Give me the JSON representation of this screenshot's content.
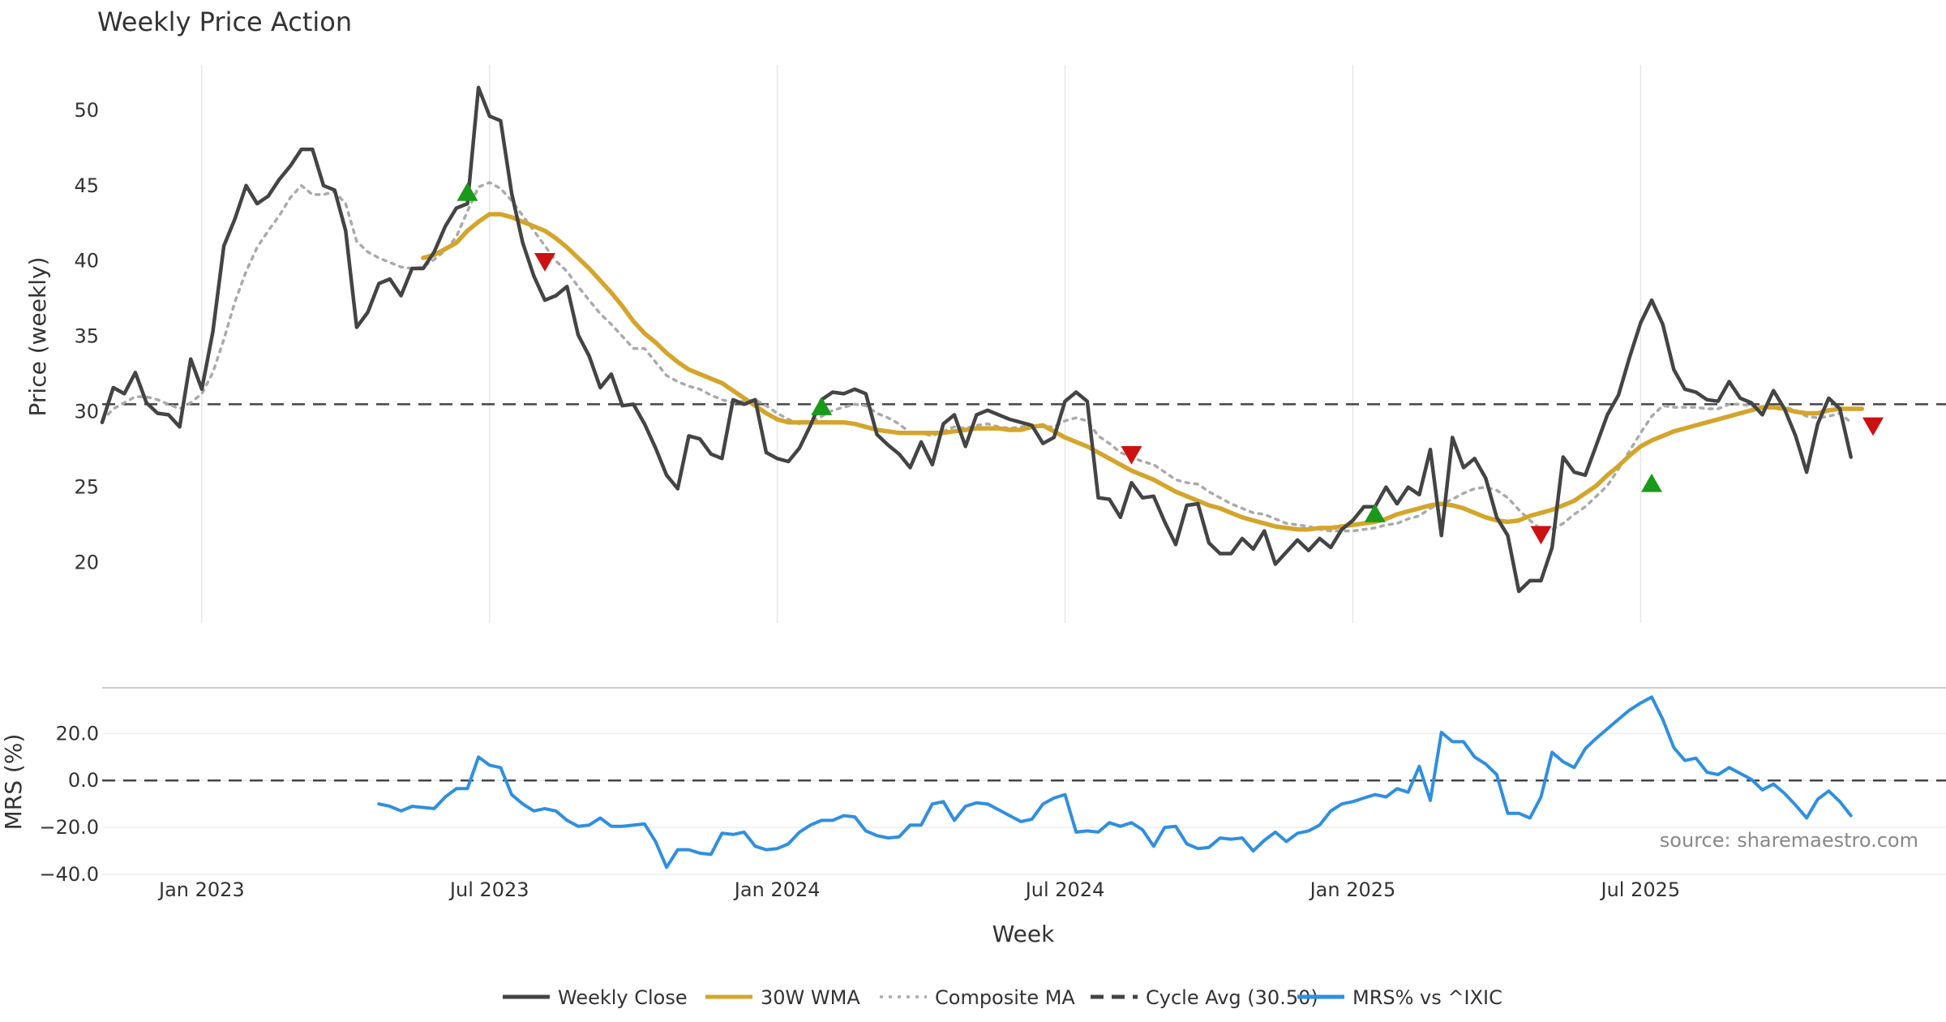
{
  "chart_data": {
    "type": "line",
    "title": "Weekly Price Action",
    "xlabel": "Week",
    "x_ticks": [
      "Jan 2023",
      "Jul 2023",
      "Jan 2024",
      "Jul 2024",
      "Jan 2025",
      "Jul 2025"
    ],
    "price_panel": {
      "ylabel": "Price (weekly)",
      "ylim": [
        16,
        53
      ],
      "yticks": [
        20,
        25,
        30,
        35,
        40,
        45,
        50
      ],
      "cycle_avg": 30.5,
      "series": [
        {
          "name": "Weekly Close",
          "color": "#444444",
          "style": "solid",
          "start_week": 0,
          "values": [
            29.3,
            31.6,
            31.2,
            32.6,
            30.6,
            29.9,
            29.8,
            29.0,
            33.5,
            31.5,
            35.3,
            41.0,
            42.8,
            45.0,
            43.8,
            44.3,
            45.4,
            46.3,
            47.4,
            47.4,
            45.0,
            44.7,
            42.0,
            35.6,
            36.6,
            38.5,
            38.8,
            37.7,
            39.5,
            39.5,
            40.6,
            42.3,
            43.5,
            43.8,
            51.5,
            49.6,
            49.3,
            44.5,
            41.2,
            39.0,
            37.4,
            37.7,
            38.3,
            35.1,
            33.7,
            31.6,
            32.5,
            30.4,
            30.5,
            29.2,
            27.6,
            25.8,
            24.9,
            28.4,
            28.2,
            27.2,
            26.9,
            30.8,
            30.5,
            30.8,
            27.3,
            26.9,
            26.7,
            27.6,
            29.1,
            30.8,
            31.3,
            31.2,
            31.5,
            31.2,
            28.5,
            27.8,
            27.2,
            26.3,
            28.0,
            26.5,
            29.2,
            29.8,
            27.7,
            29.8,
            30.1,
            29.8,
            29.5,
            29.3,
            29.1,
            27.9,
            28.3,
            30.7,
            31.3,
            30.7,
            24.3,
            24.2,
            23.0,
            25.3,
            24.3,
            24.4,
            22.7,
            21.2,
            23.8,
            23.9,
            21.3,
            20.6,
            20.6,
            21.6,
            20.9,
            22.1,
            19.9,
            20.7,
            21.5,
            20.8,
            21.6,
            21.0,
            22.2,
            22.8,
            23.7,
            23.7,
            25.0,
            23.9,
            25.0,
            24.5,
            27.5,
            21.8,
            28.3,
            26.3,
            26.9,
            25.6,
            23.0,
            21.8,
            18.1,
            18.8,
            18.8,
            21.0,
            27.0,
            26.0,
            25.8,
            27.8,
            29.8,
            31.1,
            33.6,
            35.9,
            37.4,
            35.8,
            32.8,
            31.5,
            31.3,
            30.8,
            30.7,
            32.0,
            30.9,
            30.6,
            29.8,
            31.4,
            30.2,
            28.4,
            26.0,
            29.2,
            30.9,
            30.2,
            27.0
          ]
        },
        {
          "name": "30W WMA",
          "color": "#d4a52c",
          "style": "solid",
          "start_week": 29,
          "values": [
            40.2,
            40.4,
            40.8,
            41.2,
            42.0,
            42.6,
            43.1,
            43.1,
            42.9,
            42.6,
            42.3,
            42.0,
            41.5,
            40.9,
            40.2,
            39.5,
            38.7,
            37.9,
            37.0,
            36.0,
            35.2,
            34.6,
            33.9,
            33.3,
            32.8,
            32.5,
            32.2,
            31.9,
            31.4,
            30.9,
            30.4,
            29.9,
            29.5,
            29.3,
            29.3,
            29.3,
            29.3,
            29.3,
            29.3,
            29.2,
            29.0,
            28.8,
            28.7,
            28.6,
            28.6,
            28.6,
            28.6,
            28.6,
            28.7,
            28.8,
            28.9,
            28.9,
            28.9,
            28.8,
            28.8,
            29.0,
            29.1,
            28.7,
            28.3,
            28.0,
            27.7,
            27.3,
            26.9,
            26.5,
            26.1,
            25.8,
            25.5,
            25.1,
            24.7,
            24.4,
            24.1,
            23.8,
            23.6,
            23.3,
            23.0,
            22.8,
            22.6,
            22.4,
            22.3,
            22.2,
            22.2,
            22.3,
            22.3,
            22.4,
            22.5,
            22.6,
            22.7,
            22.9,
            23.2,
            23.4,
            23.6,
            23.8,
            23.9,
            23.8,
            23.6,
            23.3,
            23.0,
            22.8,
            22.7,
            22.8,
            23.1,
            23.3,
            23.5,
            23.8,
            24.1,
            24.6,
            25.1,
            25.8,
            26.4,
            27.1,
            27.7,
            28.1,
            28.4,
            28.7,
            28.9,
            29.1,
            29.3,
            29.5,
            29.7,
            29.9,
            30.1,
            30.3,
            30.3,
            30.2,
            30.0,
            29.9,
            29.9,
            30.1,
            30.2,
            30.2,
            30.2
          ]
        },
        {
          "name": "Composite MA",
          "color": "#aaaaaa",
          "style": "dotted",
          "start_week": 0,
          "values": [
            29.4,
            30.2,
            30.6,
            31.0,
            31.0,
            30.8,
            30.5,
            30.2,
            30.6,
            31.2,
            32.6,
            34.8,
            37.3,
            39.3,
            40.9,
            42.0,
            43.0,
            44.2,
            45.0,
            44.4,
            44.4,
            44.6,
            43.8,
            41.3,
            40.6,
            40.2,
            39.9,
            39.6,
            39.5,
            39.6,
            40.1,
            40.7,
            41.6,
            43.3,
            44.9,
            45.2,
            44.8,
            44.0,
            43.0,
            42.0,
            41.0,
            40.0,
            39.3,
            38.3,
            37.4,
            36.5,
            35.8,
            35.0,
            34.2,
            34.2,
            33.3,
            32.4,
            32.0,
            31.7,
            31.5,
            31.1,
            30.8,
            30.6,
            30.7,
            30.8,
            30.4,
            29.9,
            29.5,
            29.2,
            29.3,
            29.7,
            30.1,
            30.3,
            30.5,
            30.4,
            29.9,
            29.6,
            29.2,
            28.6,
            28.6,
            28.4,
            28.7,
            29.0,
            28.9,
            29.1,
            29.2,
            29.0,
            28.9,
            29.0,
            29.1,
            29.0,
            29.0,
            29.4,
            29.6,
            29.4,
            28.4,
            27.9,
            27.3,
            27.0,
            26.7,
            26.5,
            26.0,
            25.5,
            25.3,
            25.2,
            24.7,
            24.3,
            23.9,
            23.6,
            23.3,
            23.2,
            22.9,
            22.6,
            22.5,
            22.4,
            22.2,
            22.1,
            22.1,
            22.1,
            22.2,
            22.3,
            22.5,
            22.6,
            22.9,
            23.1,
            23.6,
            23.9,
            24.2,
            24.6,
            24.9,
            25.0,
            24.8,
            24.3,
            23.5,
            22.8,
            22.2,
            22.2,
            22.6,
            23.2,
            23.7,
            24.4,
            25.1,
            26.2,
            27.4,
            28.6,
            29.7,
            30.4,
            30.3,
            30.3,
            30.3,
            30.2,
            30.2,
            30.5,
            30.5,
            30.4,
            30.2,
            30.3,
            30.3,
            30.1,
            29.7,
            29.6,
            29.7,
            29.9,
            29.3
          ]
        }
      ],
      "buy_signals": [
        {
          "week": 33,
          "price": 44.5
        },
        {
          "week": 65,
          "price": 30.3
        },
        {
          "week": 115,
          "price": 23.2
        },
        {
          "week": 140,
          "price": 25.2
        }
      ],
      "sell_signals": [
        {
          "week": 40,
          "price": 40.0
        },
        {
          "week": 93,
          "price": 27.2
        },
        {
          "week": 130,
          "price": 21.9
        },
        {
          "week": 160,
          "price": 29.1
        }
      ]
    },
    "mrs_panel": {
      "ylabel": "MRS (%)",
      "ylim": [
        -40,
        36
      ],
      "yticks": [
        20.0,
        0.0,
        -20.0,
        -40.0
      ],
      "ytick_labels": [
        "20.0",
        "0.0",
        "−20.0",
        "−40.0"
      ],
      "zero_line": 0,
      "series": [
        {
          "name": "MRS% vs ^IXIC",
          "color": "#2f8fe0",
          "start_week": 25,
          "values": [
            -10,
            -11,
            -13,
            -11,
            -11.5,
            -12,
            -7,
            -3.5,
            -3.5,
            10,
            6.5,
            5.5,
            -6,
            -10,
            -13,
            -12,
            -13,
            -17,
            -19.5,
            -19,
            -16,
            -19.5,
            -19.5,
            -19,
            -18.5,
            -26,
            -37,
            -29.5,
            -29.5,
            -31,
            -31.5,
            -22.5,
            -23,
            -22,
            -28,
            -29.5,
            -29,
            -27,
            -22,
            -19,
            -17,
            -17,
            -15,
            -15.5,
            -21.5,
            -23.5,
            -24.5,
            -24,
            -19,
            -19,
            -10,
            -9,
            -17,
            -11,
            -9.5,
            -10,
            -12.5,
            -15,
            -17.5,
            -16.5,
            -10,
            -7.5,
            -6,
            -22,
            -21.5,
            -22,
            -18,
            -19.5,
            -18,
            -21,
            -28,
            -20,
            -19.5,
            -27,
            -29,
            -28.5,
            -24.5,
            -25,
            -24.5,
            -30,
            -25.5,
            -22,
            -26,
            -22.5,
            -21.5,
            -19,
            -13,
            -10,
            -9,
            -7.5,
            -6,
            -7,
            -3.5,
            -5,
            6,
            -8.5,
            20.5,
            16.5,
            16.5,
            10,
            7,
            2.5,
            -14,
            -14,
            -16,
            -7,
            12,
            8,
            5.5,
            13.5,
            18,
            22,
            26,
            30,
            33,
            35.5,
            26,
            14,
            8.5,
            9.5,
            3.5,
            2.5,
            5.5,
            3,
            0.5,
            -4,
            -1.5,
            -5.5,
            -10.5,
            -16,
            -8,
            -4.5,
            -9,
            -15
          ]
        }
      ]
    },
    "legend": [
      {
        "label": "Weekly Close",
        "color": "#444444",
        "style": "solid"
      },
      {
        "label": "30W WMA",
        "color": "#d4a52c",
        "style": "solid"
      },
      {
        "label": "Composite MA",
        "color": "#aaaaaa",
        "style": "dotted"
      },
      {
        "label": "Cycle Avg (30.50)",
        "color": "#444444",
        "style": "dashed"
      },
      {
        "label": "MRS% vs ^IXIC",
        "color": "#2f8fe0",
        "style": "solid"
      }
    ],
    "legend_position": "bottom-center",
    "annotation": "source: sharemaestro.com",
    "signal_colors": {
      "buy": "#1a9a1a",
      "sell": "#cc1111"
    }
  }
}
